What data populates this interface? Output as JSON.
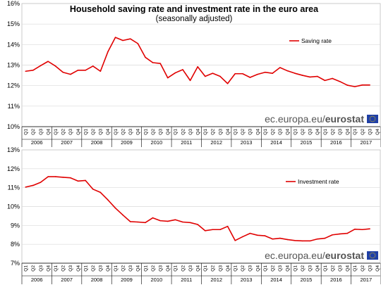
{
  "chart_data": [
    {
      "type": "line",
      "title": "Household saving rate and investment rate in the euro area",
      "subtitle": "(seasonally adjusted)",
      "series": [
        {
          "name": "Saving rate",
          "color": "#e00000",
          "values": [
            12.7,
            12.75,
            12.97,
            13.18,
            12.95,
            12.65,
            12.55,
            12.75,
            12.75,
            12.95,
            12.7,
            13.65,
            14.35,
            14.2,
            14.28,
            14.05,
            13.38,
            13.12,
            13.08,
            12.38,
            12.62,
            12.78,
            12.25,
            12.92,
            12.45,
            12.6,
            12.45,
            12.1,
            12.58,
            12.58,
            12.4,
            12.55,
            12.65,
            12.6,
            12.88,
            12.72,
            12.6,
            12.5,
            12.42,
            12.45,
            12.25,
            12.35,
            12.2,
            12.02,
            11.95,
            12.03,
            12.03
          ]
        }
      ],
      "ylim": [
        10,
        16
      ],
      "yticks": [
        "10%",
        "11%",
        "12%",
        "13%",
        "14%",
        "15%",
        "16%"
      ],
      "xticks_quarters": [
        "Q1",
        "Q2",
        "Q3",
        "Q4"
      ],
      "xticks_years": [
        "2006",
        "2007",
        "2008",
        "2009",
        "2010",
        "2011",
        "2012",
        "2013",
        "2014",
        "2015",
        "2016",
        "2017"
      ],
      "legend": "top-right",
      "brand": {
        "prefix": "ec.europa.eu/",
        "bold": "eurostat"
      }
    },
    {
      "type": "line",
      "series": [
        {
          "name": "Investment rate",
          "color": "#e00000",
          "values": [
            11.03,
            11.12,
            11.28,
            11.58,
            11.58,
            11.55,
            11.52,
            11.35,
            11.38,
            10.92,
            10.75,
            10.35,
            9.92,
            9.55,
            9.2,
            9.18,
            9.15,
            9.4,
            9.25,
            9.22,
            9.3,
            9.18,
            9.15,
            9.05,
            8.72,
            8.78,
            8.78,
            8.95,
            8.2,
            8.4,
            8.58,
            8.48,
            8.45,
            8.28,
            8.32,
            8.25,
            8.2,
            8.18,
            8.18,
            8.28,
            8.32,
            8.5,
            8.55,
            8.58,
            8.8,
            8.78,
            8.82
          ]
        }
      ],
      "ylim": [
        7,
        13
      ],
      "yticks": [
        "7%",
        "8%",
        "9%",
        "10%",
        "11%",
        "12%",
        "13%"
      ],
      "xticks_quarters": [
        "Q1",
        "Q2",
        "Q3",
        "Q4"
      ],
      "xticks_years": [
        "2006",
        "2007",
        "2008",
        "2009",
        "2010",
        "2011",
        "2012",
        "2013",
        "2014",
        "2015",
        "2016",
        "2017"
      ],
      "legend": "top-right",
      "brand": {
        "prefix": "ec.europa.eu/",
        "bold": "eurostat"
      }
    }
  ]
}
